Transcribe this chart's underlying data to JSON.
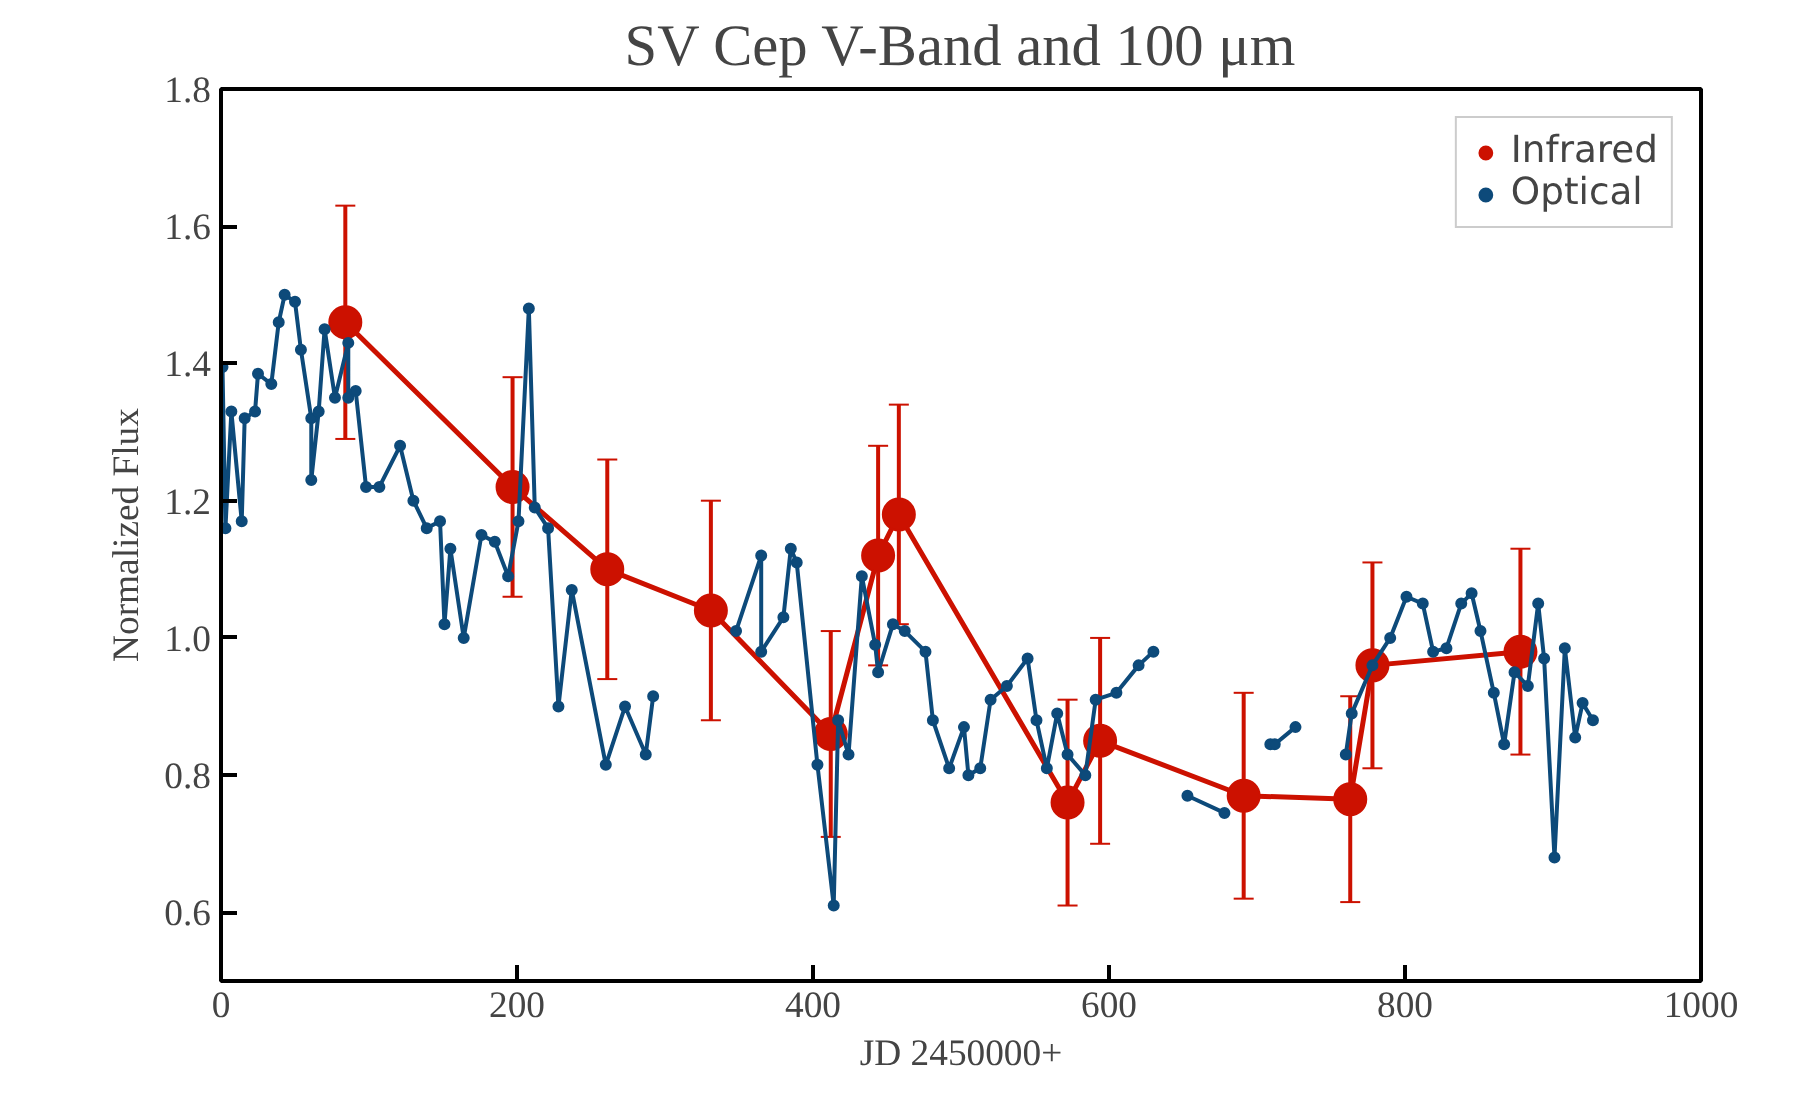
{
  "chart_data": {
    "type": "line",
    "title": "SV Cep V-Band and 100 μm",
    "xlabel": "JD 2450000+",
    "ylabel": "Normalized Flux",
    "xlim": [
      0,
      1000
    ],
    "xticks": [
      0,
      200,
      400,
      600,
      800,
      1000
    ],
    "ylim": [
      0.5,
      1.8
    ],
    "yticks": [
      {
        "value": 0.6,
        "label": "0.6"
      },
      {
        "value": 0.8,
        "label": "0.8"
      },
      {
        "value": 1.0,
        "label": "1.0"
      },
      {
        "value": 1.2,
        "label": "1.2"
      },
      {
        "value": 1.4,
        "label": "1.4"
      },
      {
        "value": 1.6,
        "label": "1.6"
      },
      {
        "value": 1.8,
        "label": "1.8"
      }
    ],
    "grid": false,
    "legend": "top right",
    "marker": "circle",
    "line_style": "solid",
    "series": [
      {
        "name": "Infrared",
        "color": "#cc1100",
        "x": [
          84,
          197,
          261,
          331,
          412,
          444,
          458,
          572,
          594,
          691,
          763,
          778,
          878
        ],
        "values": [
          1.46,
          1.22,
          1.1,
          1.04,
          0.86,
          1.12,
          1.18,
          0.76,
          0.85,
          0.77,
          0.765,
          0.96,
          0.98
        ],
        "errors": [
          0.17,
          0.16,
          0.16,
          0.16,
          0.15,
          0.16,
          0.16,
          0.15,
          0.15,
          0.15,
          0.15,
          0.15,
          0.15
        ]
      },
      {
        "name": "Optical",
        "color": "#0d4a7a",
        "x": [
          1,
          3,
          7,
          14,
          16,
          23,
          25,
          34,
          39,
          43,
          50,
          54,
          61,
          61,
          66,
          70,
          77,
          86,
          86,
          91,
          98,
          107,
          121,
          130,
          139,
          148,
          151,
          155,
          164,
          176,
          185,
          194,
          201,
          208,
          212,
          221,
          228,
          237,
          260,
          273,
          287,
          292,
          320,
          348,
          365,
          365,
          380,
          385,
          389,
          403,
          414,
          417,
          424,
          433,
          442,
          444,
          454,
          462,
          476,
          481,
          492,
          502,
          505,
          513,
          520,
          531,
          545,
          551,
          558,
          565,
          572,
          584,
          591,
          605,
          620,
          630,
          640,
          653,
          678,
          695,
          709,
          712,
          726,
          745,
          760,
          764,
          778,
          790,
          801,
          812,
          819,
          828,
          838,
          845,
          851,
          860,
          867,
          874,
          883,
          890,
          894,
          901,
          908,
          915,
          920,
          927
        ],
        "values": [
          1.395,
          1.16,
          1.33,
          1.17,
          1.32,
          1.33,
          1.385,
          1.37,
          1.46,
          1.5,
          1.49,
          1.42,
          1.32,
          1.23,
          1.33,
          1.45,
          1.35,
          1.43,
          1.35,
          1.36,
          1.22,
          1.22,
          1.28,
          1.2,
          1.16,
          1.17,
          1.02,
          1.13,
          1.0,
          1.15,
          1.14,
          1.09,
          1.17,
          1.48,
          1.19,
          1.16,
          0.9,
          1.07,
          0.815,
          0.9,
          0.83,
          0.915,
          null,
          1.01,
          1.12,
          0.98,
          1.03,
          1.13,
          1.11,
          0.815,
          0.61,
          0.88,
          0.83,
          1.09,
          0.99,
          0.95,
          1.02,
          1.01,
          0.98,
          0.88,
          0.81,
          0.87,
          0.8,
          0.81,
          0.91,
          0.93,
          0.97,
          0.88,
          0.81,
          0.89,
          0.83,
          0.8,
          0.91,
          0.92,
          0.96,
          0.98,
          null,
          0.77,
          0.745,
          null,
          0.845,
          0.845,
          0.87,
          null,
          0.83,
          0.89,
          0.96,
          1.0,
          1.06,
          1.05,
          0.98,
          0.985,
          1.05,
          1.065,
          1.01,
          0.92,
          0.845,
          0.95,
          0.93,
          1.05,
          0.97,
          0.68,
          0.985,
          0.855,
          0.905,
          0.88
        ]
      }
    ]
  }
}
